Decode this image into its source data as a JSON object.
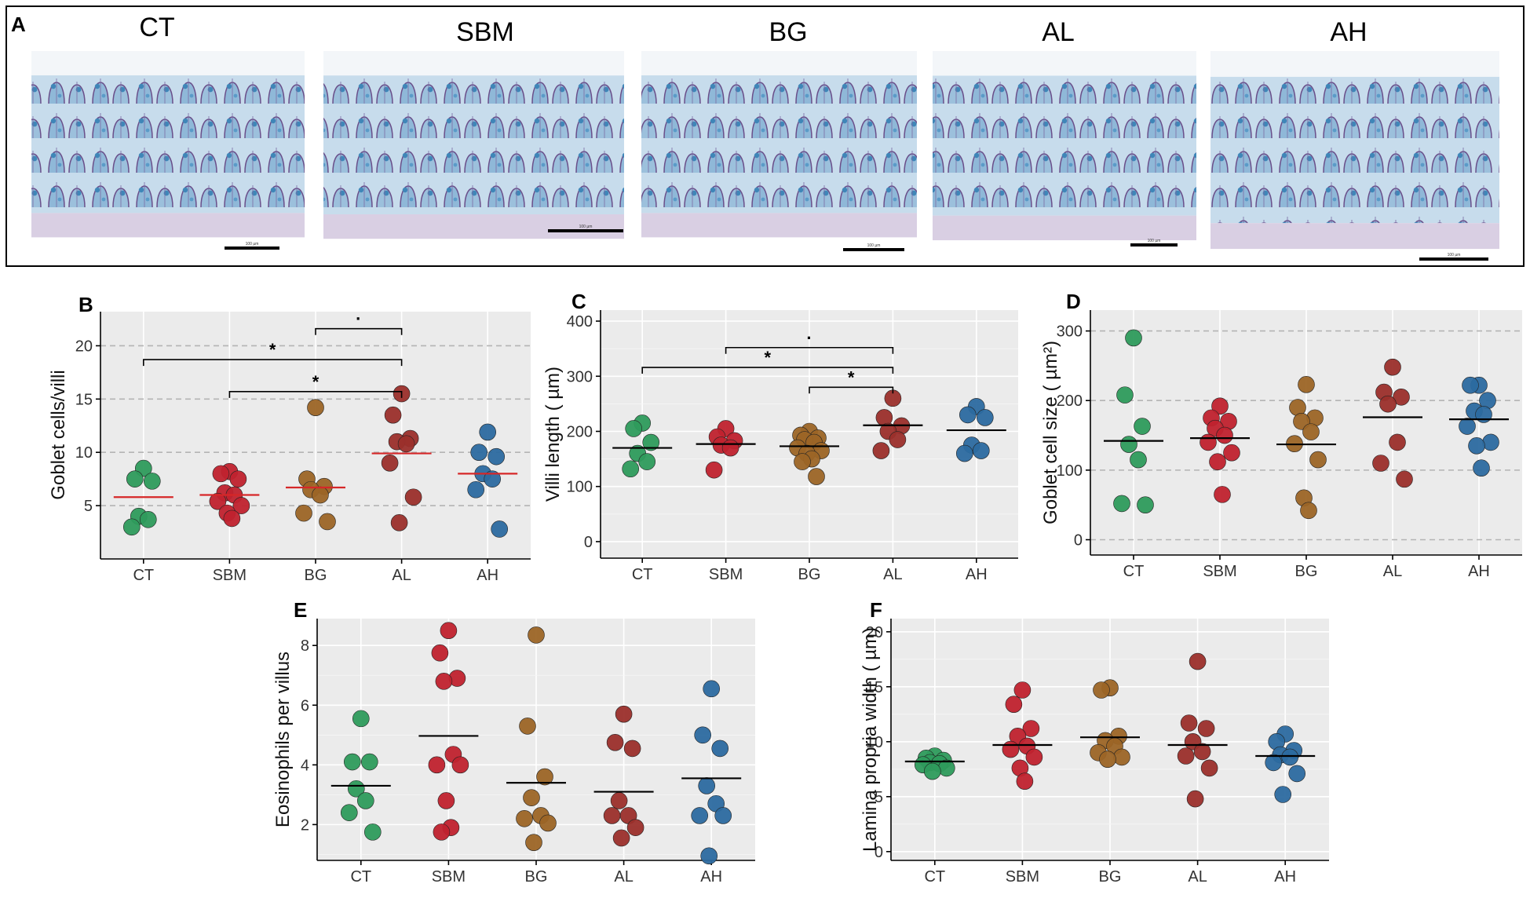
{
  "figure_label": "A",
  "histology": {
    "tiles": [
      {
        "label": "CT",
        "scale_bar": "100 µm"
      },
      {
        "label": "SBM",
        "scale_bar": "100 µm"
      },
      {
        "label": "BG",
        "scale_bar": "100 µm"
      },
      {
        "label": "AL",
        "scale_bar": "100 µm"
      },
      {
        "label": "AH",
        "scale_bar": "100 µm"
      }
    ]
  },
  "colors": {
    "CT": "#2e9b5c",
    "SBM": "#c0222e",
    "BG": "#9c6526",
    "AL": "#9b2f2b",
    "AH": "#2c6aa0",
    "mean_black": "#000000",
    "mean_red": "#d62728"
  },
  "chart_data": [
    {
      "panel": "B",
      "type": "scatter",
      "categories": [
        "CT",
        "SBM",
        "BG",
        "AL",
        "AH"
      ],
      "ylabel": "Goblet cells/villi",
      "xlabel": "",
      "ylim": [
        0,
        23.2
      ],
      "yticks": [
        5,
        10,
        15,
        20
      ],
      "grid": "dashed",
      "mean_color": "red",
      "points": {
        "CT": [
          8.5,
          7.5,
          7.3,
          4.0,
          3.7,
          3.0
        ],
        "SBM": [
          8.2,
          8.0,
          7.5,
          6.2,
          6.0,
          5.4,
          5.0,
          4.3,
          3.8
        ],
        "BG": [
          14.2,
          7.5,
          6.8,
          6.5,
          6.0,
          4.3,
          3.5
        ],
        "AL": [
          15.5,
          13.5,
          11.3,
          11.0,
          10.8,
          9.0,
          5.8,
          3.4
        ],
        "AH": [
          11.9,
          10.0,
          9.6,
          8.0,
          7.5,
          6.5,
          2.8
        ]
      },
      "means": {
        "CT": 5.8,
        "SBM": 6.0,
        "BG": 6.7,
        "AL": 9.9,
        "AH": 8.0
      },
      "significance": [
        {
          "from": "BG",
          "to": "AL",
          "label": "·",
          "y": 21.6
        },
        {
          "from": "CT",
          "to": "AL",
          "label": "*",
          "y": 18.7
        },
        {
          "from": "SBM",
          "to": "AL",
          "label": "*",
          "y": 15.7
        }
      ]
    },
    {
      "panel": "C",
      "type": "scatter",
      "categories": [
        "CT",
        "SBM",
        "BG",
        "AL",
        "AH"
      ],
      "ylabel": "Villi length ( µm)",
      "xlabel": "",
      "ylim": [
        -30,
        420
      ],
      "yticks": [
        0,
        100,
        200,
        300,
        400
      ],
      "grid": "solid",
      "mean_color": "black",
      "points": {
        "CT": [
          215,
          205,
          180,
          160,
          145,
          132
        ],
        "SBM": [
          205,
          190,
          183,
          175,
          170,
          130
        ],
        "BG": [
          200,
          193,
          188,
          185,
          180,
          170,
          165,
          160,
          150,
          145,
          118
        ],
        "AL": [
          260,
          225,
          210,
          200,
          185,
          165
        ],
        "AH": [
          245,
          230,
          225,
          175,
          165,
          160
        ]
      },
      "means": {
        "CT": 170,
        "SBM": 177,
        "BG": 173,
        "AL": 211,
        "AH": 202
      },
      "significance": [
        {
          "from": "SBM",
          "to": "AL",
          "label": "·",
          "y": 352
        },
        {
          "from": "CT",
          "to": "AL",
          "label": "*",
          "y": 316
        },
        {
          "from": "BG",
          "to": "AL",
          "label": "*",
          "y": 280
        }
      ]
    },
    {
      "panel": "D",
      "type": "scatter",
      "categories": [
        "CT",
        "SBM",
        "BG",
        "AL",
        "AH"
      ],
      "ylabel": "Goblet cell size ( µm²)",
      "xlabel": "",
      "ylim": [
        -22,
        330
      ],
      "yticks": [
        0,
        100,
        200,
        300
      ],
      "grid": "dashed",
      "mean_color": "black",
      "points": {
        "CT": [
          290,
          208,
          163,
          137,
          115,
          52,
          50
        ],
        "SBM": [
          192,
          175,
          170,
          160,
          150,
          140,
          125,
          112,
          65
        ],
        "BG": [
          223,
          190,
          175,
          170,
          155,
          138,
          115,
          60,
          42
        ],
        "AL": [
          248,
          212,
          205,
          195,
          140,
          110,
          87
        ],
        "AH": [
          222,
          222,
          200,
          185,
          180,
          163,
          140,
          135,
          103
        ]
      },
      "means": {
        "CT": 142,
        "SBM": 146,
        "BG": 137,
        "AL": 176,
        "AH": 173
      },
      "significance": []
    },
    {
      "panel": "E",
      "type": "scatter",
      "categories": [
        "CT",
        "SBM",
        "BG",
        "AL",
        "AH"
      ],
      "ylabel": "Eosinophils per villus",
      "xlabel": "",
      "ylim": [
        0.8,
        8.9
      ],
      "yticks": [
        2,
        4,
        6,
        8
      ],
      "grid": "solid",
      "mean_color": "black",
      "points": {
        "CT": [
          5.55,
          4.1,
          4.1,
          3.2,
          2.8,
          2.4,
          1.75
        ],
        "SBM": [
          8.5,
          7.75,
          6.9,
          6.8,
          4.35,
          4.0,
          4.0,
          2.8,
          1.9,
          1.75
        ],
        "BG": [
          8.35,
          5.3,
          3.6,
          2.9,
          2.3,
          2.2,
          2.05,
          1.4
        ],
        "AL": [
          5.7,
          4.75,
          4.55,
          2.8,
          2.3,
          2.3,
          1.9,
          1.55
        ],
        "AH": [
          6.55,
          5.0,
          4.55,
          3.3,
          2.7,
          2.3,
          2.3,
          0.95
        ]
      },
      "means": {
        "CT": 3.3,
        "SBM": 4.97,
        "BG": 3.4,
        "AL": 3.1,
        "AH": 3.55
      },
      "significance": []
    },
    {
      "panel": "F",
      "type": "scatter",
      "categories": [
        "CT",
        "SBM",
        "BG",
        "AL",
        "AH"
      ],
      "ylabel": "Lamina propria width ( µm)",
      "xlabel": "",
      "ylim": [
        -0.8,
        21.2
      ],
      "yticks": [
        0,
        5,
        10,
        15,
        20
      ],
      "grid": "solid",
      "mean_color": "black",
      "points": {
        "CT": [
          8.7,
          8.5,
          8.3,
          8.1,
          8.0,
          7.9,
          7.6,
          7.3
        ],
        "SBM": [
          14.7,
          13.4,
          11.2,
          10.5,
          9.6,
          9.3,
          8.6,
          7.6,
          6.4
        ],
        "BG": [
          14.9,
          14.7,
          10.5,
          10.1,
          9.6,
          9.0,
          8.6,
          8.4
        ],
        "AL": [
          17.3,
          11.7,
          11.2,
          10.0,
          9.1,
          8.7,
          7.6,
          4.8
        ],
        "AH": [
          10.7,
          10.0,
          9.2,
          8.8,
          8.6,
          8.1,
          7.1,
          5.2
        ]
      },
      "means": {
        "CT": 8.2,
        "SBM": 9.7,
        "BG": 10.4,
        "AL": 9.7,
        "AH": 8.7
      },
      "significance": []
    }
  ]
}
